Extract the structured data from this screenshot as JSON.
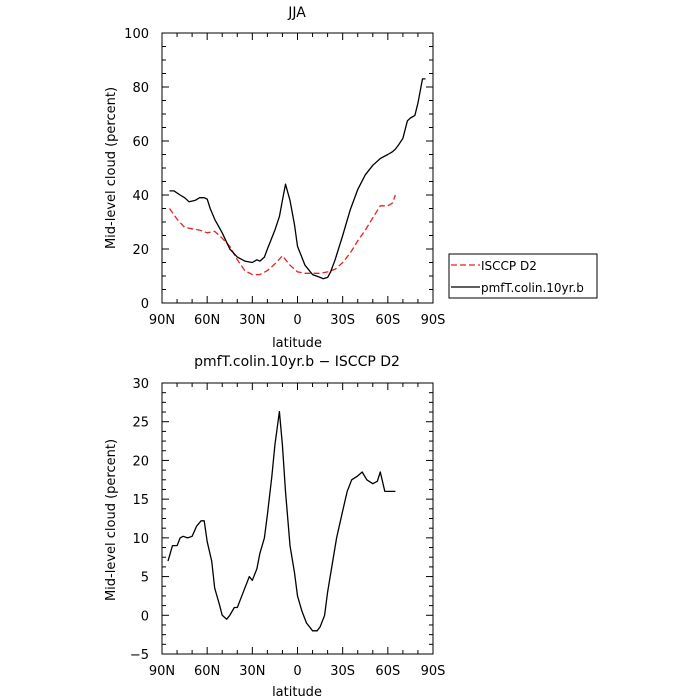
{
  "chart_data": [
    {
      "type": "line",
      "title": "JJA",
      "xlabel": "latitude",
      "ylabel": "Mid-level cloud (percent)",
      "xlim": [
        90,
        -90
      ],
      "ylim": [
        0,
        100
      ],
      "xticks": [
        90,
        60,
        30,
        0,
        -30,
        -60,
        -90
      ],
      "xtick_labels": [
        "90N",
        "60N",
        "30N",
        "0",
        "30S",
        "60S",
        "90S"
      ],
      "yticks": [
        0,
        20,
        40,
        60,
        80,
        100
      ],
      "ytick_labels": [
        "0",
        "20",
        "40",
        "60",
        "80",
        "100"
      ],
      "legend_position": "right",
      "series": [
        {
          "name": "ISCCP D2",
          "color": "#e8231f",
          "style": "dashed",
          "x": [
            85,
            80,
            75,
            70,
            65,
            60,
            55,
            50,
            45,
            40,
            35,
            30,
            25,
            20,
            15,
            10,
            5,
            0,
            -5,
            -10,
            -15,
            -20,
            -25,
            -30,
            -35,
            -40,
            -45,
            -50,
            -55,
            -60,
            -63,
            -65
          ],
          "y": [
            35,
            31,
            28,
            27.5,
            27,
            26,
            26.5,
            24,
            21,
            16,
            12,
            10.5,
            10.5,
            12,
            14.5,
            17.5,
            14,
            11.5,
            11,
            11,
            11,
            11.5,
            12.5,
            15,
            18.5,
            23,
            27,
            31.5,
            36,
            36,
            37,
            40
          ]
        },
        {
          "name": "pmfT.colin.10yr.b",
          "color": "#000000",
          "style": "solid",
          "x": [
            85,
            82,
            78,
            75,
            72,
            68,
            65,
            62,
            60,
            58,
            55,
            50,
            45,
            40,
            35,
            30,
            27,
            25,
            22,
            20,
            15,
            12,
            10,
            8,
            5,
            2,
            0,
            -5,
            -10,
            -15,
            -17,
            -20,
            -22,
            -25,
            -30,
            -35,
            -40,
            -45,
            -50,
            -55,
            -60,
            -63,
            -65,
            -67,
            -70,
            -73,
            -75,
            -78,
            -80,
            -83,
            -85
          ],
          "y": [
            41.5,
            41.5,
            40,
            39,
            37.5,
            38,
            39,
            39,
            38.5,
            35,
            31,
            26,
            20,
            17,
            15.5,
            15,
            16,
            15.5,
            17,
            20,
            27,
            32,
            38,
            44,
            38,
            29,
            21,
            14,
            10.5,
            9.5,
            9,
            9.5,
            11.5,
            16,
            25,
            34.5,
            42,
            47.5,
            51,
            53.5,
            55,
            56,
            57,
            58.5,
            61,
            67.5,
            68.5,
            69.5,
            74,
            83,
            83
          ]
        }
      ]
    },
    {
      "type": "line",
      "title": "pmfT.colin.10yr.b − ISCCP D2",
      "xlabel": "latitude",
      "ylabel": "Mid-level cloud (percent)",
      "xlim": [
        90,
        -90
      ],
      "ylim": [
        -5,
        30
      ],
      "xticks": [
        90,
        60,
        30,
        0,
        -30,
        -60,
        -90
      ],
      "xtick_labels": [
        "90N",
        "60N",
        "30N",
        "0",
        "30S",
        "60S",
        "90S"
      ],
      "yticks": [
        -5,
        0,
        5,
        10,
        15,
        20,
        25,
        30
      ],
      "ytick_labels": [
        "−5",
        "0",
        "5",
        "10",
        "15",
        "20",
        "25",
        "30"
      ],
      "series": [
        {
          "name": "",
          "color": "#000000",
          "style": "solid",
          "x": [
            86,
            83,
            80,
            78,
            76,
            73,
            70,
            67,
            64,
            62,
            60,
            57,
            55,
            52,
            50,
            47,
            45,
            42,
            40,
            38,
            35,
            32,
            30,
            27,
            25,
            22,
            20,
            17,
            15,
            12,
            10,
            8,
            5,
            2,
            0,
            -3,
            -6,
            -10,
            -13,
            -15,
            -18,
            -20,
            -23,
            -26,
            -30,
            -33,
            -36,
            -40,
            -43,
            -46,
            -50,
            -53,
            -55,
            -58,
            -60,
            -63,
            -65
          ],
          "y": [
            7,
            9,
            9,
            10,
            10.2,
            10,
            10.2,
            11.5,
            12.2,
            12.2,
            9.5,
            7,
            3.5,
            1.5,
            0,
            -0.5,
            0,
            1,
            1,
            2,
            3.5,
            5,
            4.5,
            6,
            8,
            10,
            13,
            18,
            22,
            26.3,
            22,
            16,
            9,
            5.5,
            2.5,
            0.5,
            -1,
            -2,
            -2,
            -1.5,
            0,
            3,
            6.5,
            10,
            13.5,
            16,
            17.5,
            18,
            18.5,
            17.5,
            17,
            17.3,
            18.5,
            16,
            16,
            16,
            16
          ]
        }
      ]
    }
  ]
}
